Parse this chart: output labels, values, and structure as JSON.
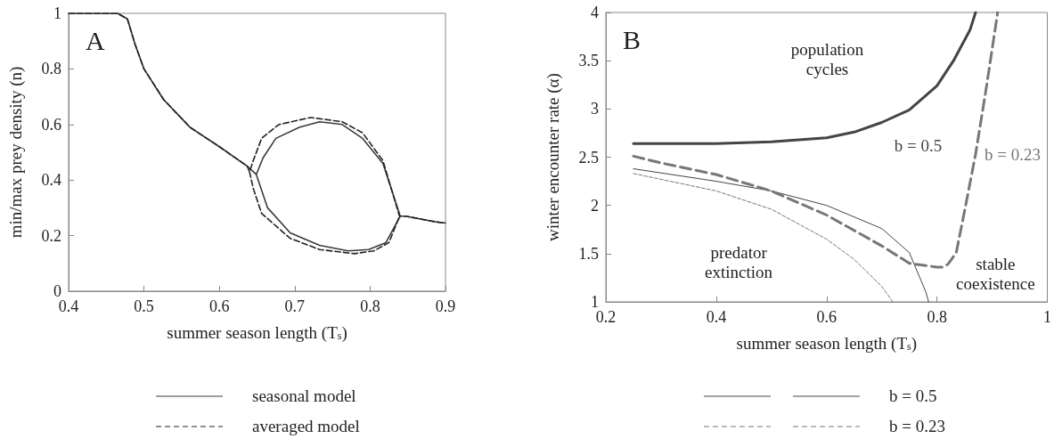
{
  "chart_data": [
    {
      "type": "line",
      "title": "A",
      "xlabel": "summer season length (T$_{s}$)",
      "ylabel": "min/max prey density (n)",
      "xlim": [
        0.4,
        0.9
      ],
      "xticks": [
        0.4,
        0.5,
        0.6,
        0.7,
        0.8,
        0.9
      ],
      "ylim": [
        0,
        1
      ],
      "yticks": [
        0,
        0.2,
        0.4,
        0.6,
        0.8,
        1
      ],
      "grid": false,
      "legend": "bottom",
      "marker": "none",
      "series": [
        {
          "name": "seasonal model",
          "color": "#3a3a3a",
          "line_style": "solid",
          "x": [
            0.4,
            0.465,
            0.478,
            0.488,
            0.5,
            0.526,
            0.561,
            0.6,
            0.637,
            0.649,
            0.658,
            0.675,
            0.706,
            0.733,
            0.763,
            0.79,
            0.817,
            0.84,
            0.847,
            0.886,
            0.9,
            null,
            0.649,
            0.664,
            0.694,
            0.733,
            0.771,
            0.798,
            0.821,
            0.84
          ],
          "values": [
            1,
            1,
            0.98,
            0.89,
            0.8,
            0.69,
            0.59,
            0.52,
            0.45,
            0.42,
            0.48,
            0.55,
            0.59,
            0.61,
            0.6,
            0.55,
            0.46,
            0.27,
            0.27,
            0.25,
            0.245,
            null,
            0.42,
            0.3,
            0.21,
            0.165,
            0.145,
            0.15,
            0.175,
            0.27
          ]
        },
        {
          "name": "averaged model",
          "color": "#222222",
          "line_style": "dashed",
          "x": [
            0.4,
            0.465,
            0.478,
            0.488,
            0.5,
            0.526,
            0.561,
            0.6,
            0.637,
            0.64,
            0.645,
            0.656,
            0.679,
            0.721,
            0.763,
            0.79,
            0.817,
            0.839,
            0.847,
            0.886,
            0.9,
            null,
            0.64,
            0.645,
            0.656,
            0.694,
            0.733,
            0.779,
            0.805,
            0.825,
            0.839
          ],
          "values": [
            1,
            1,
            0.98,
            0.89,
            0.8,
            0.69,
            0.59,
            0.52,
            0.45,
            0.43,
            0.47,
            0.55,
            0.6,
            0.625,
            0.61,
            0.57,
            0.47,
            0.27,
            0.27,
            0.25,
            0.245,
            null,
            0.43,
            0.37,
            0.28,
            0.19,
            0.15,
            0.135,
            0.145,
            0.175,
            0.27
          ]
        }
      ]
    },
    {
      "type": "line",
      "title": "B",
      "xlabel": "summer season length (T$_{s}$)",
      "ylabel": "winter encounter rate (α)",
      "xlim": [
        0.2,
        1
      ],
      "xticks": [
        0.2,
        0.4,
        0.6,
        0.8,
        1
      ],
      "ylim": [
        1,
        4
      ],
      "yticks": [
        1,
        1.5,
        2,
        2.5,
        3,
        3.5,
        4
      ],
      "grid": false,
      "legend": "bottom",
      "marker": "none",
      "annotations": [
        "population\ncycles",
        "predator\nextinction",
        "stable\ncoexistence"
      ],
      "series": [
        {
          "name": "b = 0.5",
          "color": "#444444",
          "line_style": "solid",
          "x": [
            0.25,
            0.4,
            0.5,
            0.6,
            0.65,
            0.7,
            0.75,
            0.8,
            0.83,
            0.86,
            0.87
          ],
          "values": [
            2.64,
            2.64,
            2.66,
            2.7,
            2.76,
            2.86,
            2.99,
            3.24,
            3.5,
            3.82,
            4.0
          ]
        },
        {
          "color": "#444444",
          "line_style": "solid",
          "x": [
            0.25,
            0.4,
            0.5,
            0.6,
            0.7,
            0.75,
            0.78,
            0.785
          ],
          "values": [
            2.38,
            2.25,
            2.15,
            2.0,
            1.76,
            1.51,
            1.1,
            1.0
          ]
        },
        {
          "name": "b = 0.23",
          "color": "#777777",
          "line_style": "dashed",
          "x": [
            0.25,
            0.3,
            0.4,
            0.5,
            0.6,
            0.7,
            0.75,
            0.8,
            0.81,
            0.82,
            0.835,
            0.85,
            0.87,
            0.89,
            0.91
          ],
          "values": [
            2.51,
            2.44,
            2.32,
            2.15,
            1.9,
            1.58,
            1.4,
            1.36,
            1.36,
            1.39,
            1.51,
            1.94,
            2.53,
            3.24,
            4.0
          ]
        },
        {
          "color": "#777777",
          "line_style": "dashed",
          "x": [
            0.25,
            0.4,
            0.5,
            0.6,
            0.65,
            0.7,
            0.72
          ],
          "values": [
            2.33,
            2.15,
            1.96,
            1.65,
            1.44,
            1.16,
            1.0
          ]
        }
      ]
    }
  ]
}
